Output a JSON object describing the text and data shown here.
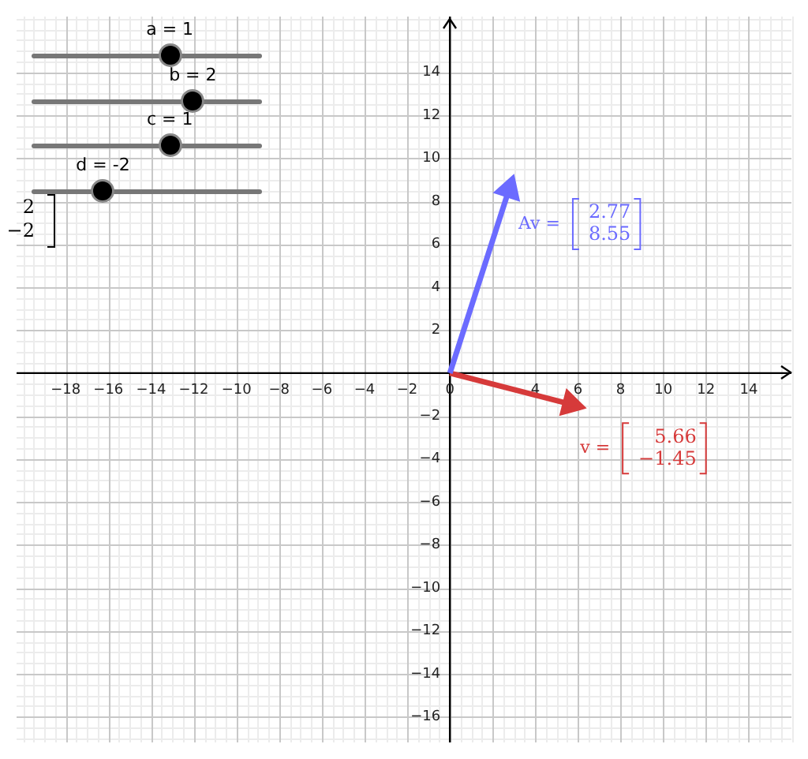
{
  "chart_data": {
    "type": "line",
    "xlim": [
      -20.3,
      16
    ],
    "ylim": [
      -17.2,
      16.6
    ],
    "xticks": [
      -18,
      -16,
      -14,
      -12,
      -10,
      -8,
      -6,
      -4,
      -2,
      0,
      {
        "value": 2,
        "label": null
      },
      4,
      6,
      8,
      10,
      12,
      14
    ],
    "yticks": [
      -16,
      -14,
      -12,
      -10,
      -8,
      -6,
      -4,
      -2,
      {
        "value": 0,
        "label": null
      },
      2,
      4,
      6,
      8,
      10,
      12,
      14
    ],
    "grid": true,
    "marker": "triangle",
    "line_style": "solid",
    "legend": false,
    "series": [
      {
        "color": "#6b6bff",
        "x": [
          0,
          2.77
        ],
        "values": [
          0,
          8.55
        ]
      },
      {
        "color": "#d63a3a",
        "x": [
          0,
          5.66
        ],
        "values": [
          0,
          -1.45
        ]
      }
    ],
    "annotations": [
      "Av =",
      "2.77",
      "8.55",
      "v =",
      "5.66",
      "−1.45",
      "a = 1",
      "b = 2",
      "c = 1",
      "d = -2",
      "2",
      "−2"
    ]
  }
}
